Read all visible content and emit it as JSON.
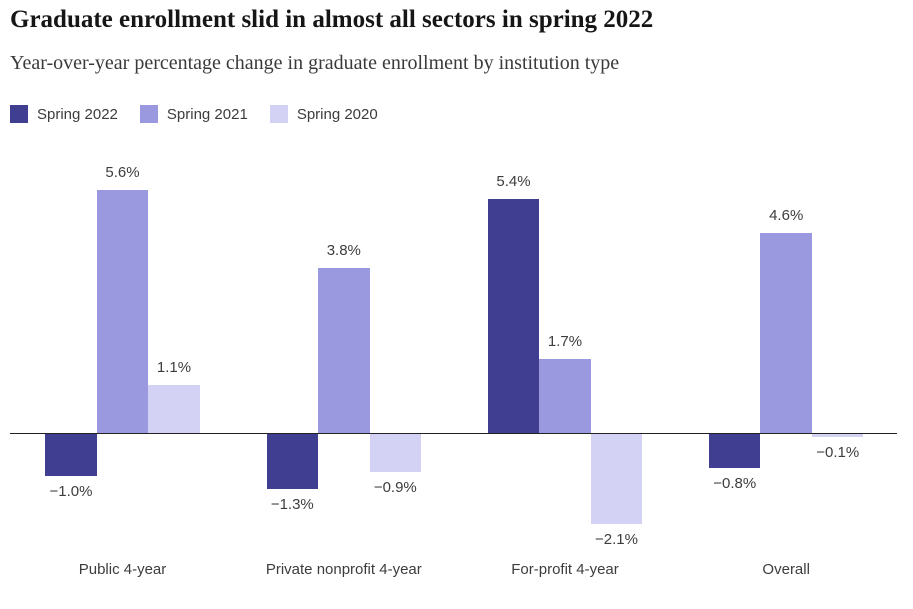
{
  "header": {
    "title": "Graduate enrollment slid in almost all sectors in spring 2022",
    "subtitle": "Year-over-year percentage change in graduate enrollment by institution type"
  },
  "colors": {
    "spring_2022": "#3f3e90",
    "spring_2021": "#9a99e0",
    "spring_2020": "#d3d2f5",
    "axis_line": "#222222",
    "title_text": "#161616",
    "label_text": "#3d3d3d"
  },
  "legend": {
    "items": [
      {
        "label": "Spring 2022",
        "color": "#3f3e90"
      },
      {
        "label": "Spring 2021",
        "color": "#9a99e0"
      },
      {
        "label": "Spring 2020",
        "color": "#d3d2f5"
      }
    ]
  },
  "chart_data": {
    "type": "bar",
    "title": "Graduate enrollment slid in almost all sectors in spring 2022",
    "subtitle": "Year-over-year percentage change in graduate enrollment by institution type",
    "categories": [
      "Public 4-year",
      "Private nonprofit 4-year",
      "For-profit 4-year",
      "Overall"
    ],
    "series": [
      {
        "name": "Spring 2022",
        "color": "#3f3e90",
        "values": [
          -1.0,
          -1.3,
          5.4,
          -0.8
        ],
        "labels": [
          "−1.0%",
          "−1.3%",
          "5.4%",
          "−0.8%"
        ]
      },
      {
        "name": "Spring 2021",
        "color": "#9a99e0",
        "values": [
          5.6,
          3.8,
          1.7,
          4.6
        ],
        "labels": [
          "5.6%",
          "3.8%",
          "1.7%",
          "4.6%"
        ]
      },
      {
        "name": "Spring 2020",
        "color": "#d3d2f5",
        "values": [
          1.1,
          -0.9,
          -2.1,
          -0.1
        ],
        "labels": [
          "1.1%",
          "−0.9%",
          "−2.1%",
          "−0.1%"
        ]
      }
    ],
    "xlabel": "",
    "ylabel": "",
    "ylim": [
      -2.6,
      6.2
    ],
    "baseline": 0,
    "grid": false,
    "value_labels": true,
    "legend_position": "top-left"
  }
}
